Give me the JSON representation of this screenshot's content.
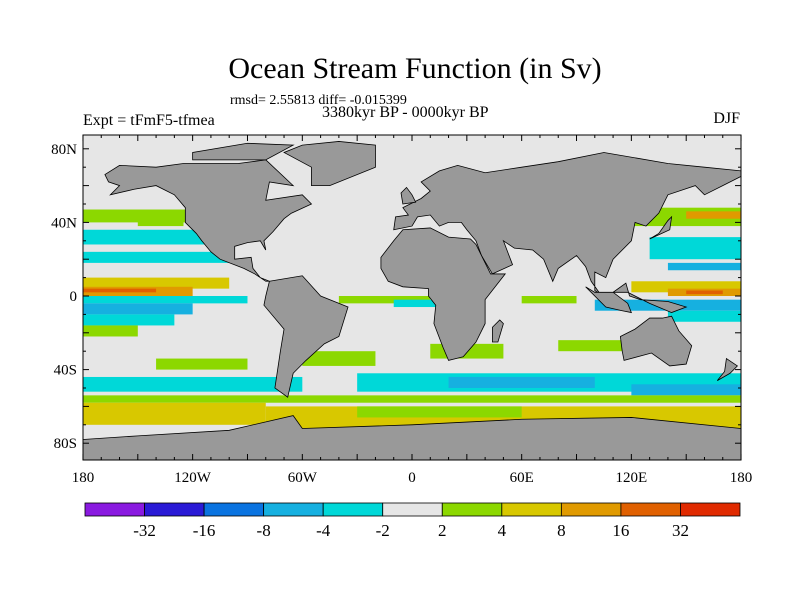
{
  "title": "Ocean Stream Function (in Sv)",
  "stats": "rmsd= 2.55813 diff= -0.015399",
  "experiment": "Expt = tFmF5-tfmea",
  "period": "3380kyr BP - 0000kyr BP",
  "season": "DJF",
  "map": {
    "projection": "cylindrical equidistant",
    "lat_labels": [
      "80N",
      "40N",
      "0",
      "40S",
      "80S"
    ],
    "lat_values": [
      80,
      40,
      0,
      -40,
      -80
    ],
    "lon_labels": [
      "180",
      "120W",
      "60W",
      "0",
      "60E",
      "120E",
      "180"
    ],
    "lon_values": [
      -180,
      -120,
      -60,
      0,
      60,
      120,
      180
    ],
    "land_color": "#999999",
    "missing_color": "#e6e6e6"
  },
  "colorbar": {
    "labels": [
      "-32",
      "-16",
      "-8",
      "-4",
      "-2",
      "2",
      "4",
      "8",
      "16",
      "32"
    ],
    "colors": [
      "#8a1ae0",
      "#2a1ad6",
      "#0a73e0",
      "#16b0e0",
      "#00d8d8",
      "#e6e6e6",
      "#8cd800",
      "#d8c800",
      "#e09a00",
      "#e06000",
      "#e02a00"
    ]
  }
}
